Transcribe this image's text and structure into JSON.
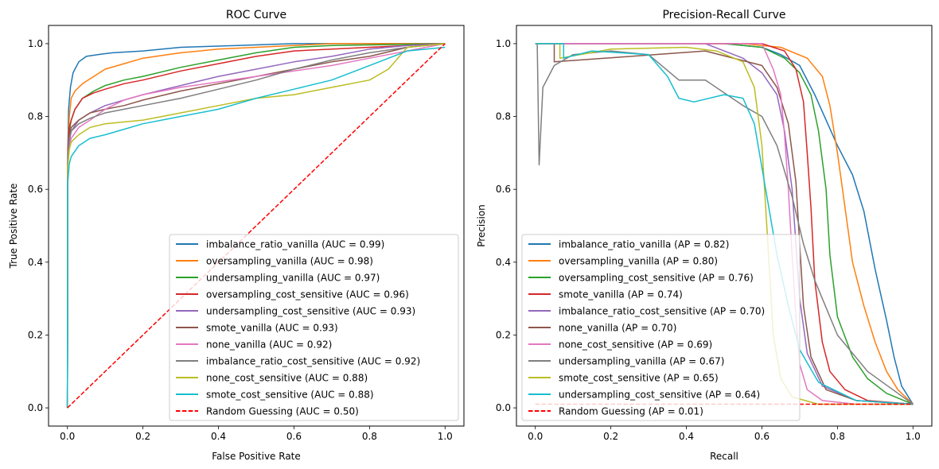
{
  "chart_data": [
    {
      "type": "line",
      "title": "ROC Curve",
      "xlabel": "False Positive Rate",
      "ylabel": "True Positive Rate",
      "xlim": [
        -0.05,
        1.05
      ],
      "ylim": [
        -0.05,
        1.05
      ],
      "xticks": [
        "0.0",
        "0.2",
        "0.4",
        "0.6",
        "0.8",
        "1.0"
      ],
      "yticks": [
        "0.0",
        "0.2",
        "0.4",
        "0.6",
        "0.8",
        "1.0"
      ],
      "grid": false,
      "legend_position": "lower-right",
      "series": [
        {
          "name": "imbalance_ratio_vanilla (AUC = 0.99)",
          "color": "#1f77b4",
          "dash": false,
          "x": [
            0,
            0.001,
            0.003,
            0.008,
            0.015,
            0.03,
            0.05,
            0.08,
            0.12,
            0.2,
            0.3,
            0.45,
            0.6,
            0.8,
            1.0
          ],
          "y": [
            0,
            0.7,
            0.82,
            0.88,
            0.92,
            0.95,
            0.965,
            0.97,
            0.975,
            0.98,
            0.99,
            0.995,
            1.0,
            1.0,
            1.0
          ]
        },
        {
          "name": "oversampling_vanilla (AUC = 0.98)",
          "color": "#ff7f0e",
          "dash": false,
          "x": [
            0,
            0.001,
            0.005,
            0.01,
            0.02,
            0.04,
            0.07,
            0.1,
            0.15,
            0.2,
            0.3,
            0.4,
            0.5,
            0.7,
            1.0
          ],
          "y": [
            0,
            0.7,
            0.8,
            0.85,
            0.87,
            0.89,
            0.91,
            0.93,
            0.945,
            0.96,
            0.975,
            0.985,
            0.99,
            1.0,
            1.0
          ]
        },
        {
          "name": "undersampling_vanilla (AUC = 0.97)",
          "color": "#2ca02c",
          "dash": false,
          "x": [
            0,
            0.001,
            0.005,
            0.01,
            0.02,
            0.04,
            0.07,
            0.1,
            0.15,
            0.2,
            0.3,
            0.4,
            0.5,
            0.6,
            0.7,
            1.0
          ],
          "y": [
            0,
            0.7,
            0.76,
            0.79,
            0.82,
            0.85,
            0.87,
            0.885,
            0.9,
            0.91,
            0.935,
            0.955,
            0.975,
            0.99,
            0.995,
            1.0
          ]
        },
        {
          "name": "oversampling_cost_sensitive (AUC = 0.96)",
          "color": "#d62728",
          "dash": false,
          "x": [
            0,
            0.001,
            0.005,
            0.01,
            0.02,
            0.04,
            0.07,
            0.1,
            0.15,
            0.2,
            0.3,
            0.4,
            0.5,
            0.6,
            0.8,
            1.0
          ],
          "y": [
            0,
            0.71,
            0.77,
            0.79,
            0.82,
            0.85,
            0.865,
            0.875,
            0.89,
            0.9,
            0.925,
            0.945,
            0.965,
            0.98,
            0.99,
            1.0
          ]
        },
        {
          "name": "undersampling_cost_sensitive (AUC = 0.93)",
          "color": "#9467bd",
          "dash": false,
          "x": [
            0,
            0.001,
            0.005,
            0.01,
            0.03,
            0.06,
            0.1,
            0.15,
            0.2,
            0.3,
            0.4,
            0.5,
            0.6,
            0.7,
            0.8,
            0.9,
            1.0
          ],
          "y": [
            0,
            0.68,
            0.73,
            0.76,
            0.79,
            0.81,
            0.83,
            0.845,
            0.86,
            0.885,
            0.91,
            0.93,
            0.95,
            0.965,
            0.985,
            0.995,
            1.0
          ]
        },
        {
          "name": "smote_vanilla (AUC = 0.93)",
          "color": "#8c564b",
          "dash": false,
          "x": [
            0,
            0.001,
            0.005,
            0.01,
            0.03,
            0.06,
            0.1,
            0.15,
            0.2,
            0.3,
            0.4,
            0.5,
            0.6,
            0.7,
            0.8,
            0.9,
            1.0
          ],
          "y": [
            0,
            0.7,
            0.75,
            0.77,
            0.79,
            0.81,
            0.82,
            0.83,
            0.845,
            0.87,
            0.89,
            0.91,
            0.93,
            0.95,
            0.965,
            0.99,
            1.0
          ]
        },
        {
          "name": "none_vanilla (AUC = 0.92)",
          "color": "#e377c2",
          "dash": false,
          "x": [
            0,
            0.001,
            0.005,
            0.01,
            0.03,
            0.06,
            0.1,
            0.15,
            0.2,
            0.3,
            0.4,
            0.5,
            0.6,
            0.7,
            0.8,
            0.9,
            1.0
          ],
          "y": [
            0,
            0.67,
            0.72,
            0.74,
            0.77,
            0.79,
            0.82,
            0.845,
            0.86,
            0.88,
            0.895,
            0.91,
            0.925,
            0.94,
            0.96,
            0.98,
            1.0
          ]
        },
        {
          "name": "imbalance_ratio_cost_sensitive (AUC = 0.92)",
          "color": "#7f7f7f",
          "dash": false,
          "x": [
            0,
            0.001,
            0.005,
            0.01,
            0.03,
            0.06,
            0.1,
            0.15,
            0.2,
            0.3,
            0.4,
            0.5,
            0.6,
            0.7,
            0.8,
            0.9,
            1.0
          ],
          "y": [
            0,
            0.69,
            0.74,
            0.76,
            0.78,
            0.795,
            0.81,
            0.82,
            0.83,
            0.85,
            0.875,
            0.9,
            0.93,
            0.955,
            0.975,
            0.99,
            1.0
          ]
        },
        {
          "name": "none_cost_sensitive (AUC = 0.88)",
          "color": "#bcbd22",
          "dash": false,
          "x": [
            0,
            0.001,
            0.005,
            0.01,
            0.03,
            0.06,
            0.1,
            0.15,
            0.2,
            0.3,
            0.4,
            0.5,
            0.6,
            0.7,
            0.8,
            0.85,
            0.9,
            1.0
          ],
          "y": [
            0,
            0.66,
            0.71,
            0.73,
            0.75,
            0.77,
            0.78,
            0.785,
            0.79,
            0.81,
            0.83,
            0.85,
            0.86,
            0.88,
            0.9,
            0.93,
            0.99,
            1.0
          ]
        },
        {
          "name": "smote_cost_sensitive (AUC = 0.88)",
          "color": "#17becf",
          "dash": false,
          "x": [
            0,
            0.001,
            0.005,
            0.01,
            0.03,
            0.06,
            0.1,
            0.15,
            0.2,
            0.3,
            0.4,
            0.5,
            0.6,
            0.7,
            0.8,
            0.9,
            1.0
          ],
          "y": [
            0,
            0.62,
            0.67,
            0.69,
            0.72,
            0.74,
            0.75,
            0.765,
            0.78,
            0.8,
            0.82,
            0.85,
            0.875,
            0.9,
            0.94,
            0.98,
            0.99
          ]
        },
        {
          "name": "Random Guessing (AUC = 0.50)",
          "color": "#ff0000",
          "dash": true,
          "x": [
            0,
            1
          ],
          "y": [
            0,
            1
          ]
        }
      ]
    },
    {
      "type": "line",
      "title": "Precision-Recall Curve",
      "xlabel": "Recall",
      "ylabel": "Precision",
      "xlim": [
        -0.05,
        1.05
      ],
      "ylim": [
        -0.05,
        1.05
      ],
      "xticks": [
        "0.0",
        "0.2",
        "0.4",
        "0.6",
        "0.8",
        "1.0"
      ],
      "yticks": [
        "0.0",
        "0.2",
        "0.4",
        "0.6",
        "0.8",
        "1.0"
      ],
      "grid": false,
      "legend_position": "lower-left",
      "series": [
        {
          "name": "imbalance_ratio_vanilla (AP = 0.82)",
          "color": "#1f77b4",
          "dash": false,
          "x": [
            0,
            0.5,
            0.6,
            0.65,
            0.7,
            0.74,
            0.77,
            0.8,
            0.84,
            0.87,
            0.9,
            0.93,
            0.95,
            0.97,
            1.0
          ],
          "y": [
            1.0,
            1.0,
            0.99,
            0.97,
            0.94,
            0.86,
            0.79,
            0.72,
            0.64,
            0.54,
            0.38,
            0.24,
            0.14,
            0.06,
            0.01
          ]
        },
        {
          "name": "oversampling_vanilla (AP = 0.80)",
          "color": "#ff7f0e",
          "dash": false,
          "x": [
            0,
            0.55,
            0.65,
            0.72,
            0.76,
            0.78,
            0.8,
            0.82,
            0.84,
            0.87,
            0.9,
            0.93,
            0.96,
            1.0
          ],
          "y": [
            1.0,
            1.0,
            0.99,
            0.96,
            0.91,
            0.83,
            0.7,
            0.55,
            0.4,
            0.28,
            0.18,
            0.1,
            0.05,
            0.01
          ]
        },
        {
          "name": "oversampling_cost_sensitive (AP = 0.76)",
          "color": "#2ca02c",
          "dash": false,
          "x": [
            0,
            0.5,
            0.6,
            0.66,
            0.7,
            0.73,
            0.75,
            0.77,
            0.78,
            0.8,
            0.84,
            0.88,
            0.93,
            1.0
          ],
          "y": [
            1.0,
            1.0,
            0.99,
            0.96,
            0.92,
            0.86,
            0.76,
            0.6,
            0.42,
            0.25,
            0.14,
            0.08,
            0.04,
            0.01
          ]
        },
        {
          "name": "smote_vanilla (AP = 0.74)",
          "color": "#d62728",
          "dash": false,
          "x": [
            0,
            0.6,
            0.66,
            0.69,
            0.71,
            0.72,
            0.73,
            0.74,
            0.76,
            0.78,
            0.82,
            0.88,
            1.0
          ],
          "y": [
            1.0,
            1.0,
            0.98,
            0.93,
            0.84,
            0.7,
            0.55,
            0.35,
            0.18,
            0.1,
            0.05,
            0.02,
            0.01
          ]
        },
        {
          "name": "imbalance_ratio_cost_sensitive (AP = 0.70)",
          "color": "#9467bd",
          "dash": false,
          "x": [
            0,
            0.45,
            0.55,
            0.6,
            0.64,
            0.66,
            0.68,
            0.69,
            0.7,
            0.72,
            0.76,
            0.85,
            1.0
          ],
          "y": [
            1.0,
            1.0,
            0.96,
            0.92,
            0.86,
            0.76,
            0.6,
            0.45,
            0.3,
            0.15,
            0.06,
            0.02,
            0.01
          ]
        },
        {
          "name": "none_vanilla (AP = 0.70)",
          "color": "#8c564b",
          "dash": false,
          "x": [
            0,
            0.05,
            0.05,
            0.45,
            0.6,
            0.64,
            0.67,
            0.69,
            0.7,
            0.71,
            0.73,
            0.77,
            0.85,
            1.0
          ],
          "y": [
            1.0,
            1.0,
            0.95,
            0.98,
            0.94,
            0.88,
            0.78,
            0.62,
            0.45,
            0.28,
            0.14,
            0.05,
            0.02,
            0.01
          ]
        },
        {
          "name": "none_cost_sensitive (AP = 0.69)",
          "color": "#e377c2",
          "dash": false,
          "x": [
            0,
            0.6,
            0.63,
            0.65,
            0.66,
            0.67,
            0.68,
            0.69,
            0.7,
            0.72,
            0.76,
            0.85,
            1.0
          ],
          "y": [
            1.0,
            1.0,
            0.93,
            0.86,
            0.75,
            0.6,
            0.42,
            0.25,
            0.12,
            0.05,
            0.02,
            0.01,
            0.01
          ]
        },
        {
          "name": "undersampling_vanilla (AP = 0.67)",
          "color": "#7f7f7f",
          "dash": false,
          "x": [
            0.005,
            0.01,
            0.02,
            0.05,
            0.1,
            0.2,
            0.3,
            0.38,
            0.45,
            0.55,
            0.6,
            0.64,
            0.68,
            0.71,
            0.74,
            0.8,
            0.88,
            1.0
          ],
          "y": [
            1.0,
            0.667,
            0.88,
            0.94,
            0.97,
            0.98,
            0.97,
            0.9,
            0.9,
            0.83,
            0.8,
            0.72,
            0.58,
            0.45,
            0.35,
            0.2,
            0.1,
            0.01
          ]
        },
        {
          "name": "smote_cost_sensitive (AP = 0.65)",
          "color": "#bcbd22",
          "dash": false,
          "x": [
            0,
            0.065,
            0.065,
            0.2,
            0.4,
            0.48,
            0.55,
            0.58,
            0.6,
            0.61,
            0.62,
            0.63,
            0.65,
            0.68,
            0.75,
            1.0
          ],
          "y": [
            1.0,
            1.0,
            0.96,
            0.985,
            0.99,
            0.98,
            0.95,
            0.88,
            0.72,
            0.55,
            0.38,
            0.2,
            0.08,
            0.03,
            0.01,
            0.01
          ]
        },
        {
          "name": "undersampling_cost_sensitive (AP = 0.64)",
          "color": "#17becf",
          "dash": false,
          "x": [
            0,
            0.075,
            0.075,
            0.15,
            0.3,
            0.35,
            0.38,
            0.42,
            0.5,
            0.55,
            0.58,
            0.61,
            0.64,
            0.67,
            0.7,
            0.75,
            0.85,
            1.0
          ],
          "y": [
            1.0,
            1.0,
            0.96,
            0.98,
            0.97,
            0.91,
            0.85,
            0.84,
            0.86,
            0.85,
            0.78,
            0.6,
            0.42,
            0.28,
            0.16,
            0.07,
            0.02,
            0.01
          ]
        },
        {
          "name": "Random Guessing (AP = 0.01)",
          "color": "#ff0000",
          "dash": true,
          "x": [
            0,
            1
          ],
          "y": [
            0.01,
            0.01
          ]
        }
      ]
    }
  ]
}
